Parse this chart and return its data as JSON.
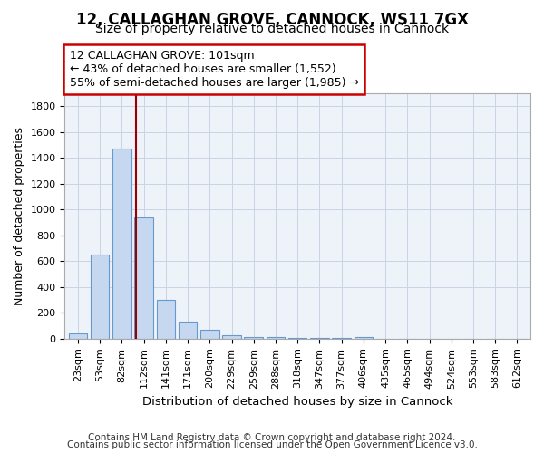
{
  "title1": "12, CALLAGHAN GROVE, CANNOCK, WS11 7GX",
  "title2": "Size of property relative to detached houses in Cannock",
  "xlabel": "Distribution of detached houses by size in Cannock",
  "ylabel": "Number of detached properties",
  "categories": [
    "23sqm",
    "53sqm",
    "82sqm",
    "112sqm",
    "141sqm",
    "171sqm",
    "200sqm",
    "229sqm",
    "259sqm",
    "288sqm",
    "318sqm",
    "347sqm",
    "377sqm",
    "406sqm",
    "435sqm",
    "465sqm",
    "494sqm",
    "524sqm",
    "553sqm",
    "583sqm",
    "612sqm"
  ],
  "values": [
    40,
    650,
    1470,
    940,
    300,
    130,
    70,
    25,
    15,
    10,
    8,
    8,
    8,
    15,
    0,
    0,
    0,
    0,
    0,
    0,
    0
  ],
  "bar_color": "#c5d8f0",
  "bar_edge_color": "#6699cc",
  "vline_color": "#990000",
  "annotation_line1": "12 CALLAGHAN GROVE: 101sqm",
  "annotation_line2": "← 43% of detached houses are smaller (1,552)",
  "annotation_line3": "55% of semi-detached houses are larger (1,985) →",
  "annotation_box_color": "white",
  "annotation_box_edge": "#cc0000",
  "ylim": [
    0,
    1900
  ],
  "yticks": [
    0,
    200,
    400,
    600,
    800,
    1000,
    1200,
    1400,
    1600,
    1800
  ],
  "footer1": "Contains HM Land Registry data © Crown copyright and database right 2024.",
  "footer2": "Contains public sector information licensed under the Open Government Licence v3.0.",
  "bg_color": "#eef2f9",
  "grid_color": "#c8d4e4",
  "title1_fontsize": 12,
  "title2_fontsize": 10,
  "xlabel_fontsize": 9.5,
  "ylabel_fontsize": 9,
  "tick_fontsize": 8,
  "footer_fontsize": 7.5,
  "ann_fontsize": 9
}
